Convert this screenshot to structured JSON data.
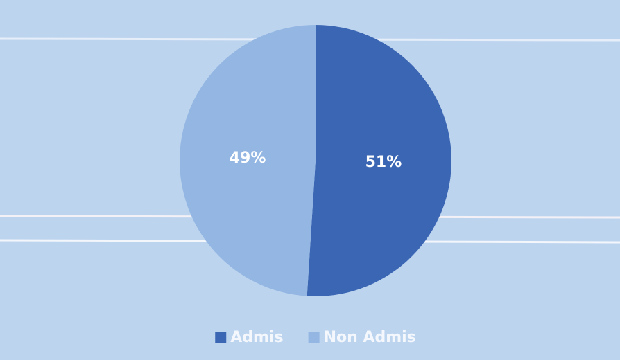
{
  "chart_data": {
    "type": "pie",
    "categories": [
      "Admis",
      "Non Admis"
    ],
    "values": [
      51,
      49
    ],
    "value_labels": [
      "51%",
      "49%"
    ],
    "colors": [
      "#3b66b3",
      "#93b6e2"
    ],
    "legend": "bottom"
  }
}
